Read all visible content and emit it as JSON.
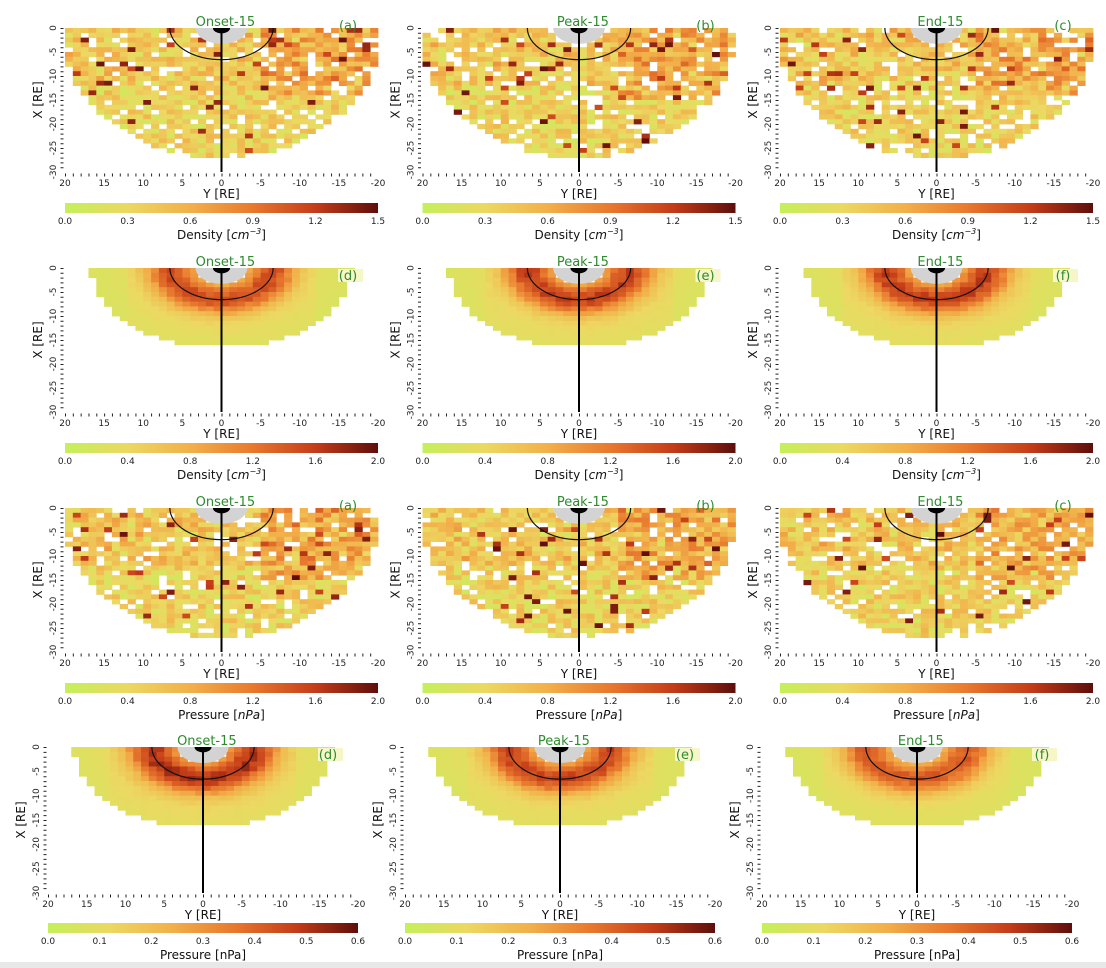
{
  "chart_data": {
    "type": "heatmap",
    "xlabel": "Y [RE]",
    "ylabel": "X [RE]",
    "xlim": [
      20,
      -20
    ],
    "ylim": [
      0,
      -30
    ],
    "x_ticks": [
      "20",
      "15",
      "10",
      "5",
      "0",
      "-5",
      "-10",
      "-15",
      "-20"
    ],
    "y_ticks": [
      "0",
      "-5",
      "-10",
      "-15",
      "-20",
      "-25",
      "-30"
    ],
    "colormap": [
      "#c4f05a",
      "#ecd862",
      "#f2b04a",
      "#e8782e",
      "#c43c18",
      "#5e0e0c"
    ],
    "title_color": "#2e8b2e",
    "reference_circle_radius_re": 6.6,
    "earth_shadow_radius_re": 3.3,
    "panels": [
      {
        "title": "Onset-15",
        "label": "(a)",
        "row": 0,
        "quantity": "density",
        "style": "patchy",
        "seed": 11,
        "cb_ticks": [
          "0.0",
          "0.3",
          "0.6",
          "0.9",
          "1.2",
          "1.5"
        ],
        "cb_max": 1.5,
        "cb_label": "Density  [",
        "cb_unit": "cm",
        "cb_exp": "−3",
        "cb_end": "]"
      },
      {
        "title": "Peak-15",
        "label": "(b)",
        "row": 0,
        "quantity": "density",
        "style": "patchy",
        "seed": 23,
        "cb_ticks": [
          "0.0",
          "0.3",
          "0.6",
          "0.9",
          "1.2",
          "1.5"
        ],
        "cb_max": 1.5,
        "cb_label": "Density  [",
        "cb_unit": "cm",
        "cb_exp": "−3",
        "cb_end": "]"
      },
      {
        "title": "End-15",
        "label": "(c)",
        "row": 0,
        "quantity": "density",
        "style": "patchy",
        "seed": 37,
        "cb_ticks": [
          "0.0",
          "0.3",
          "0.6",
          "0.9",
          "1.2",
          "1.5"
        ],
        "cb_max": 1.5,
        "cb_label": "Density  [",
        "cb_unit": "cm",
        "cb_exp": "−3",
        "cb_end": "]"
      },
      {
        "title": "Onset-15",
        "label": "(d)",
        "row": 1,
        "quantity": "density",
        "style": "smooth",
        "seed": 41,
        "peak": 1.6,
        "cb_ticks": [
          "0.0",
          "0.4",
          "0.8",
          "1.2",
          "1.6",
          "2.0"
        ],
        "cb_max": 2.0,
        "cb_label": "Density [",
        "cb_unit": "cm",
        "cb_exp": "−3",
        "cb_end": "]"
      },
      {
        "title": "Peak-15",
        "label": "(e)",
        "row": 1,
        "quantity": "density",
        "style": "smooth",
        "seed": 53,
        "peak": 1.7,
        "cb_ticks": [
          "0.0",
          "0.4",
          "0.8",
          "1.2",
          "1.6",
          "2.0"
        ],
        "cb_max": 2.0,
        "cb_label": "Density [",
        "cb_unit": "cm",
        "cb_exp": "−3",
        "cb_end": "]"
      },
      {
        "title": "End-15",
        "label": "(f)",
        "row": 1,
        "quantity": "density",
        "style": "smooth",
        "seed": 67,
        "peak": 1.7,
        "cb_ticks": [
          "0.0",
          "0.4",
          "0.8",
          "1.2",
          "1.6",
          "2.0"
        ],
        "cb_max": 2.0,
        "cb_label": "Density [",
        "cb_unit": "cm",
        "cb_exp": "−3",
        "cb_end": "]"
      },
      {
        "title": "Onset-15",
        "label": "(a)",
        "row": 2,
        "quantity": "pressure",
        "style": "patchy",
        "seed": 71,
        "cb_ticks": [
          "0.0",
          "0.4",
          "0.8",
          "1.2",
          "1.6",
          "2.0"
        ],
        "cb_max": 2.0,
        "cb_label": "Pressure  [",
        "cb_unit": "nPa",
        "cb_exp": "",
        "cb_end": "]"
      },
      {
        "title": "Peak-15",
        "label": "(b)",
        "row": 2,
        "quantity": "pressure",
        "style": "patchy",
        "seed": 83,
        "cb_ticks": [
          "0.0",
          "0.4",
          "0.8",
          "1.2",
          "1.6",
          "2.0"
        ],
        "cb_max": 2.0,
        "cb_label": "Pressure  [",
        "cb_unit": "nPa",
        "cb_exp": "",
        "cb_end": "]"
      },
      {
        "title": "End-15",
        "label": "(c)",
        "row": 2,
        "quantity": "pressure",
        "style": "patchy",
        "seed": 97,
        "cb_ticks": [
          "0.0",
          "0.4",
          "0.8",
          "1.2",
          "1.6",
          "2.0"
        ],
        "cb_max": 2.0,
        "cb_label": "Pressure  [",
        "cb_unit": "nPa",
        "cb_exp": "",
        "cb_end": "]"
      },
      {
        "title": "Onset-15",
        "label": "(d)",
        "row": 3,
        "quantity": "pressure",
        "style": "smooth",
        "seed": 101,
        "peak": 0.55,
        "cb_ticks": [
          "0.0",
          "0.1",
          "0.2",
          "0.3",
          "0.4",
          "0.5",
          "0.6"
        ],
        "cb_max": 0.6,
        "cb_label": "Pressure [nPa]",
        "cb_unit": "",
        "cb_exp": "",
        "cb_end": ""
      },
      {
        "title": "Peak-15",
        "label": "(e)",
        "row": 3,
        "quantity": "pressure",
        "style": "smooth",
        "seed": 113,
        "peak": 0.5,
        "cb_ticks": [
          "0.0",
          "0.1",
          "0.2",
          "0.3",
          "0.4",
          "0.5",
          "0.6"
        ],
        "cb_max": 0.6,
        "cb_label": "Pressure [nPa]",
        "cb_unit": "",
        "cb_exp": "",
        "cb_end": ""
      },
      {
        "title": "End-15",
        "label": "(f)",
        "row": 3,
        "quantity": "pressure",
        "style": "smooth",
        "seed": 127,
        "peak": 0.45,
        "cb_ticks": [
          "0.0",
          "0.1",
          "0.2",
          "0.3",
          "0.4",
          "0.5",
          "0.6"
        ],
        "cb_max": 0.6,
        "cb_label": "Pressure [nPa]",
        "cb_unit": "",
        "cb_exp": "",
        "cb_end": ""
      }
    ]
  }
}
